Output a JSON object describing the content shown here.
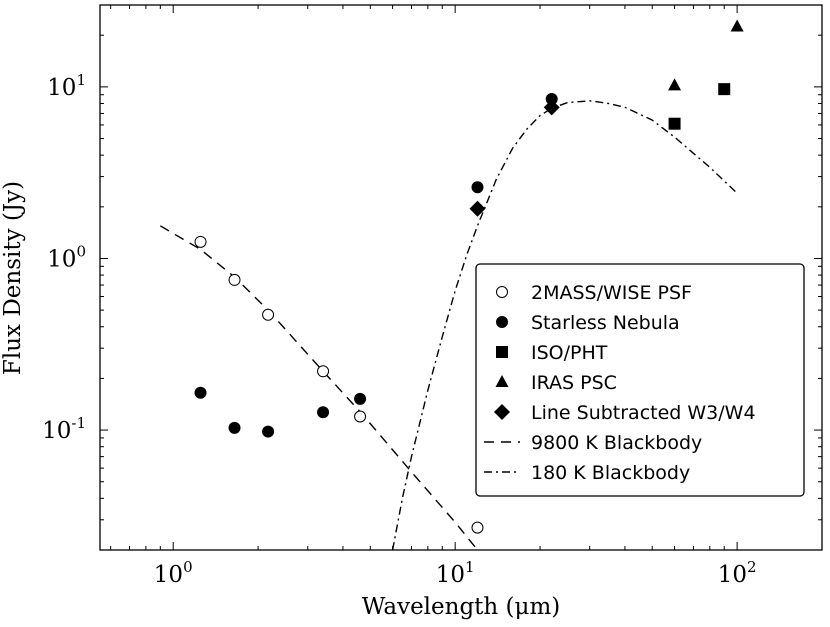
{
  "chart_data": {
    "type": "scatter",
    "xscale": "log",
    "yscale": "log",
    "xlim": [
      0.55,
      200
    ],
    "ylim": [
      0.02,
      30
    ],
    "xlabel": "Wavelength (μm)",
    "ylabel": "Flux Density (Jy)",
    "xticks": [
      {
        "value": 1,
        "base": "10",
        "exp": "0"
      },
      {
        "value": 10,
        "base": "10",
        "exp": "1"
      },
      {
        "value": 100,
        "base": "10",
        "exp": "2"
      }
    ],
    "yticks": [
      {
        "value": 0.1,
        "base": "10",
        "exp": "-1"
      },
      {
        "value": 1,
        "base": "10",
        "exp": "0"
      },
      {
        "value": 10,
        "base": "10",
        "exp": "1"
      }
    ],
    "series": [
      {
        "name": "2MASS/WISE PSF",
        "marker": "open-circle",
        "x": [
          1.25,
          1.65,
          2.17,
          3.4,
          4.6,
          12.0
        ],
        "y": [
          1.25,
          0.75,
          0.47,
          0.22,
          0.12,
          0.027
        ]
      },
      {
        "name": "Starless Nebula",
        "marker": "filled-circle",
        "x": [
          1.25,
          1.65,
          2.17,
          3.4,
          4.6,
          12.0,
          22.0
        ],
        "y": [
          0.165,
          0.103,
          0.098,
          0.127,
          0.152,
          2.6,
          8.5
        ]
      },
      {
        "name": "ISO/PHT",
        "marker": "square",
        "x": [
          60,
          90
        ],
        "y": [
          6.1,
          9.7
        ]
      },
      {
        "name": "IRAS PSC",
        "marker": "triangle",
        "x": [
          60,
          100
        ],
        "y": [
          10.2,
          22.5
        ]
      },
      {
        "name": "Line Subtracted W3/W4",
        "marker": "diamond",
        "x": [
          12.0,
          22.0
        ],
        "y": [
          1.95,
          7.6
        ]
      },
      {
        "name": "9800 K Blackbody",
        "marker": "dashed-line",
        "x": [
          0.9,
          1.0,
          1.25,
          1.65,
          2.17,
          3.4,
          4.6,
          7.0,
          10.0,
          12.0
        ],
        "y": [
          1.55,
          1.4,
          1.13,
          0.78,
          0.5,
          0.22,
          0.128,
          0.057,
          0.029,
          0.02
        ]
      },
      {
        "name": "180 K Blackbody",
        "marker": "dashdot-line",
        "x": [
          6.0,
          6.5,
          7.0,
          8.0,
          9.0,
          10.0,
          11.0,
          12.0,
          14.0,
          16.0,
          18.0,
          20.0,
          22.0,
          25.0,
          30.0,
          35.0,
          40.0,
          50.0,
          60.0,
          70.0,
          80.0,
          100.0
        ],
        "y": [
          0.02,
          0.04,
          0.07,
          0.17,
          0.35,
          0.65,
          1.05,
          1.55,
          2.9,
          4.4,
          5.7,
          6.8,
          7.5,
          8.1,
          8.3,
          8.0,
          7.6,
          6.4,
          5.1,
          4.1,
          3.4,
          2.4
        ]
      }
    ]
  }
}
